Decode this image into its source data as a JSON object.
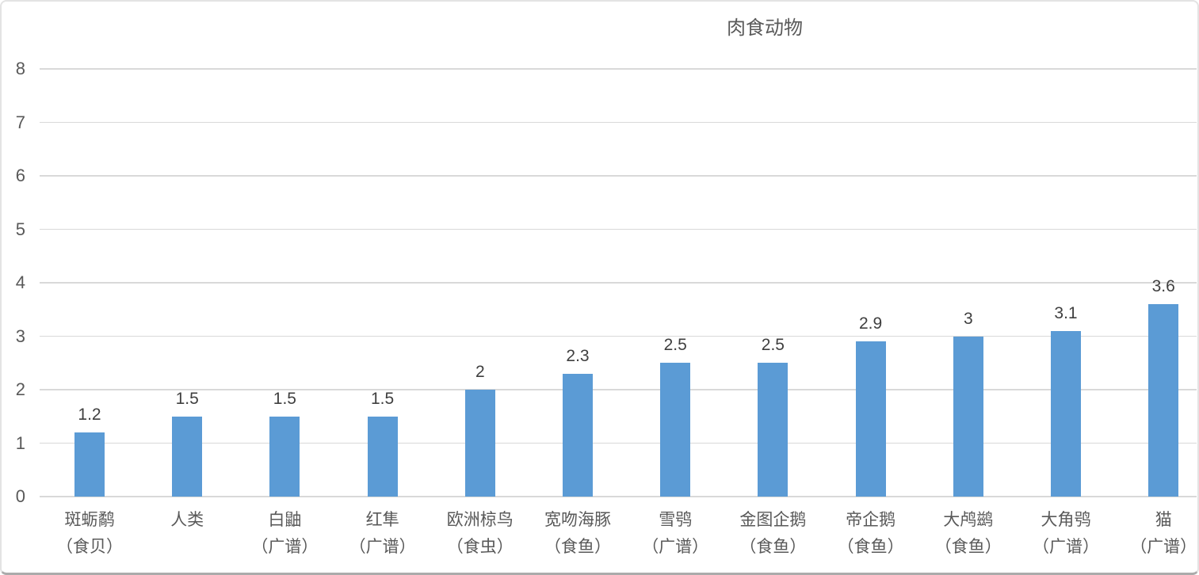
{
  "chart_data": {
    "type": "bar",
    "title": "肉食动物",
    "categories": [
      [
        "斑蛎鹬",
        "（食贝）"
      ],
      [
        "人类"
      ],
      [
        "白鼬",
        "（广谱）"
      ],
      [
        "红隼",
        "（广谱）"
      ],
      [
        "欧洲椋鸟",
        "（食虫）"
      ],
      [
        "宽吻海豚",
        "（食鱼）"
      ],
      [
        "雪鸮",
        "（广谱）"
      ],
      [
        "金图企鹅",
        "（食鱼）"
      ],
      [
        "帝企鹅",
        "（食鱼）"
      ],
      [
        "大鸬鹚",
        "（食鱼）"
      ],
      [
        "大角鸮",
        "（广谱）"
      ],
      [
        "猫",
        "（广谱）"
      ]
    ],
    "values": [
      1.2,
      1.5,
      1.5,
      1.5,
      2,
      2.3,
      2.5,
      2.5,
      2.9,
      3,
      3.1,
      3.6
    ],
    "value_labels": [
      "1.2",
      "1.5",
      "1.5",
      "1.5",
      "2",
      "2.3",
      "2.5",
      "2.5",
      "2.9",
      "3",
      "3.1",
      "3.6"
    ],
    "xlabel": "",
    "ylabel": "",
    "ylim": [
      0,
      8
    ],
    "ytick_step": 1,
    "ytick_labels": [
      "0",
      "1",
      "2",
      "3",
      "4",
      "5",
      "6",
      "7",
      "8"
    ],
    "grid": true,
    "legend": false,
    "colors": {
      "bar": "#5b9bd5",
      "gridline": "#d9d9d9",
      "axis_text": "#595959",
      "data_label": "#3f3f3f",
      "title_text": "#595959"
    }
  }
}
